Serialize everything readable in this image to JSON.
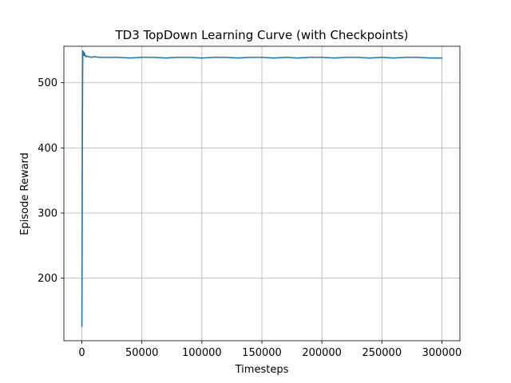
{
  "chart_data": {
    "type": "line",
    "title": "TD3 TopDown Learning Curve (with Checkpoints)",
    "xlabel": "Timesteps",
    "ylabel": "Episode Reward",
    "xlim": [
      -15000,
      315000
    ],
    "ylim": [
      104,
      556
    ],
    "xticks": [
      0,
      50000,
      100000,
      150000,
      200000,
      250000,
      300000
    ],
    "yticks": [
      200,
      300,
      400,
      500
    ],
    "grid": true,
    "line_color": "#1f77b4",
    "series": [
      {
        "x": [
          0,
          200,
          400,
          600,
          800,
          1000,
          1200,
          1500,
          1800,
          2100,
          2500,
          3000,
          3500,
          4000,
          5000,
          6000,
          8000,
          10000,
          15000,
          20000,
          30000,
          40000,
          50000,
          60000,
          70000,
          80000,
          90000,
          100000,
          110000,
          120000,
          130000,
          140000,
          150000,
          160000,
          170000,
          180000,
          190000,
          200000,
          210000,
          220000,
          230000,
          240000,
          250000,
          260000,
          270000,
          280000,
          290000,
          300000
        ],
        "values": [
          126,
          250,
          410,
          510,
          549,
          546,
          548,
          545,
          542,
          546,
          543,
          541,
          540,
          541,
          540,
          540,
          539,
          540,
          539,
          539,
          539,
          538,
          539,
          539,
          538,
          539,
          539,
          538,
          539,
          539,
          538,
          539,
          539,
          538,
          539,
          538,
          539,
          539,
          538,
          539,
          539,
          538,
          539,
          538,
          539,
          539,
          538,
          538
        ]
      }
    ]
  }
}
